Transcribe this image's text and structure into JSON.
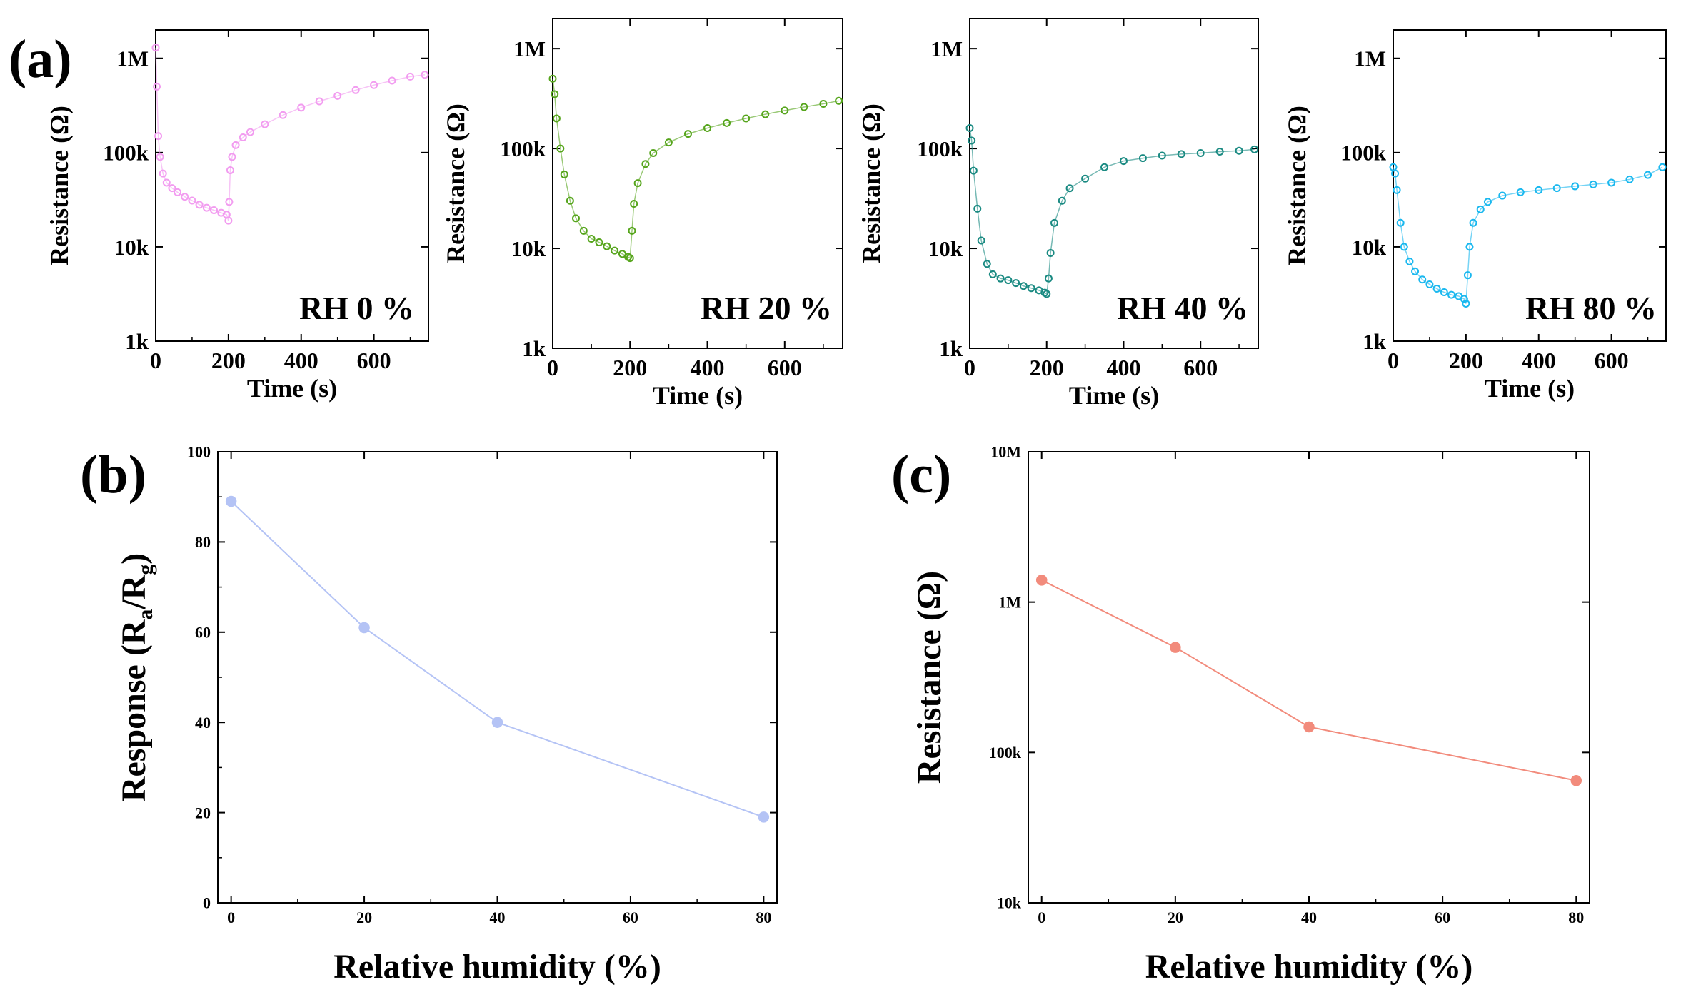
{
  "figure": {
    "panel_labels": [
      "(a)",
      "(b)",
      "(c)"
    ]
  },
  "chart_data": [
    {
      "id": "a1",
      "type": "scatter",
      "title": "",
      "annotation": "RH 0 %",
      "xlabel": "Time (s)",
      "ylabel": "Resistance (Ω)",
      "xlim": [
        0,
        750
      ],
      "ylim": [
        1000,
        2000000
      ],
      "yscale": "log",
      "xticks": [
        0,
        200,
        400,
        600
      ],
      "xtick_labels": [
        "0",
        "200",
        "400",
        "600"
      ],
      "yticks": [
        1000,
        10000,
        100000,
        1000000
      ],
      "ytick_labels": [
        "1k",
        "10k",
        "100k",
        "1M"
      ],
      "color": "#f29cf0",
      "series": [
        {
          "name": "RH 0 %",
          "x": [
            0,
            3,
            7,
            12,
            20,
            30,
            45,
            60,
            80,
            100,
            120,
            140,
            160,
            180,
            195,
            200,
            202,
            205,
            210,
            220,
            240,
            260,
            300,
            350,
            400,
            450,
            500,
            550,
            600,
            650,
            700,
            740
          ],
          "values": [
            1300000,
            500000,
            150000,
            90000,
            60000,
            48000,
            42000,
            38000,
            34000,
            31000,
            28000,
            26000,
            24500,
            23000,
            22000,
            19000,
            30000,
            65000,
            90000,
            120000,
            145000,
            165000,
            200000,
            250000,
            300000,
            350000,
            400000,
            460000,
            520000,
            580000,
            640000,
            670000
          ]
        }
      ]
    },
    {
      "id": "a2",
      "type": "scatter",
      "title": "",
      "annotation": "RH 20 %",
      "xlabel": "Time (s)",
      "ylabel": "Resistance (Ω)",
      "xlim": [
        0,
        750
      ],
      "ylim": [
        1000,
        2000000
      ],
      "yscale": "log",
      "xticks": [
        0,
        200,
        400,
        600
      ],
      "xtick_labels": [
        "0",
        "200",
        "400",
        "600"
      ],
      "yticks": [
        1000,
        10000,
        100000,
        1000000
      ],
      "ytick_labels": [
        "1k",
        "10k",
        "100k",
        "1M"
      ],
      "color": "#56a51c",
      "series": [
        {
          "name": "RH 20 %",
          "x": [
            0,
            5,
            10,
            20,
            30,
            45,
            60,
            80,
            100,
            120,
            140,
            160,
            180,
            195,
            200,
            205,
            210,
            220,
            240,
            260,
            300,
            350,
            400,
            450,
            500,
            550,
            600,
            650,
            700,
            740
          ],
          "values": [
            500000,
            350000,
            200000,
            100000,
            55000,
            30000,
            20000,
            15000,
            12500,
            11500,
            10500,
            9500,
            8800,
            8200,
            8000,
            15000,
            28000,
            45000,
            70000,
            90000,
            115000,
            140000,
            160000,
            180000,
            200000,
            220000,
            240000,
            260000,
            280000,
            300000
          ]
        }
      ]
    },
    {
      "id": "a3",
      "type": "scatter",
      "title": "",
      "annotation": "RH 40 %",
      "xlabel": "Time (s)",
      "ylabel": "Resistance (Ω)",
      "xlim": [
        0,
        750
      ],
      "ylim": [
        1000,
        2000000
      ],
      "yscale": "log",
      "xticks": [
        0,
        200,
        400,
        600
      ],
      "xtick_labels": [
        "0",
        "200",
        "400",
        "600"
      ],
      "yticks": [
        1000,
        10000,
        100000,
        1000000
      ],
      "ytick_labels": [
        "1k",
        "10k",
        "100k",
        "1M"
      ],
      "color": "#1a8a82",
      "series": [
        {
          "name": "RH 40 %",
          "x": [
            0,
            5,
            10,
            20,
            30,
            45,
            60,
            80,
            100,
            120,
            140,
            160,
            180,
            195,
            200,
            205,
            210,
            220,
            240,
            260,
            300,
            350,
            400,
            450,
            500,
            550,
            600,
            650,
            700,
            740
          ],
          "values": [
            160000,
            120000,
            60000,
            25000,
            12000,
            7000,
            5500,
            5000,
            4800,
            4500,
            4200,
            4000,
            3800,
            3600,
            3500,
            5000,
            9000,
            18000,
            30000,
            40000,
            50000,
            65000,
            75000,
            80000,
            85000,
            88000,
            90000,
            93000,
            95000,
            98000
          ]
        }
      ]
    },
    {
      "id": "a4",
      "type": "scatter",
      "title": "",
      "annotation": "RH 80 %",
      "xlabel": "Time (s)",
      "ylabel": "Resistance (Ω)",
      "xlim": [
        0,
        750
      ],
      "ylim": [
        1000,
        2000000
      ],
      "yscale": "log",
      "xticks": [
        0,
        200,
        400,
        600
      ],
      "xtick_labels": [
        "0",
        "200",
        "400",
        "600"
      ],
      "yticks": [
        1000,
        10000,
        100000,
        1000000
      ],
      "ytick_labels": [
        "1k",
        "10k",
        "100k",
        "1M"
      ],
      "color": "#1ab8ef",
      "series": [
        {
          "name": "RH 80 %",
          "x": [
            0,
            5,
            10,
            20,
            30,
            45,
            60,
            80,
            100,
            120,
            140,
            160,
            180,
            195,
            200,
            205,
            210,
            220,
            240,
            260,
            300,
            350,
            400,
            450,
            500,
            550,
            600,
            650,
            700,
            740
          ],
          "values": [
            70000,
            60000,
            40000,
            18000,
            10000,
            7000,
            5500,
            4500,
            4000,
            3600,
            3300,
            3100,
            3000,
            2800,
            2500,
            5000,
            10000,
            18000,
            25000,
            30000,
            35000,
            38000,
            40000,
            42000,
            44000,
            46000,
            48000,
            52000,
            58000,
            70000
          ]
        }
      ]
    },
    {
      "id": "b",
      "type": "line",
      "title": "",
      "xlabel": "Relative humidity (%)",
      "ylabel": "Response (Ra/Rg)",
      "ylabel_parts": [
        "Response (R",
        "a",
        "/R",
        "g",
        ")"
      ],
      "xlim": [
        -2,
        82
      ],
      "ylim": [
        0,
        100
      ],
      "yscale": "linear",
      "xticks": [
        0,
        20,
        40,
        60,
        80
      ],
      "xtick_labels": [
        "0",
        "20",
        "40",
        "60",
        "80"
      ],
      "yticks": [
        0,
        20,
        40,
        60,
        80,
        100
      ],
      "ytick_labels": [
        "0",
        "20",
        "40",
        "60",
        "80",
        "100"
      ],
      "color": "#b4c3f5",
      "series": [
        {
          "name": "Response",
          "x": [
            0,
            20,
            40,
            80
          ],
          "values": [
            89,
            61,
            40,
            19
          ]
        }
      ]
    },
    {
      "id": "c",
      "type": "line",
      "title": "",
      "xlabel": "Relative humidity (%)",
      "ylabel": "Resistance (Ω)",
      "xlim": [
        -2,
        82
      ],
      "ylim": [
        10000,
        10000000
      ],
      "yscale": "log",
      "xticks": [
        0,
        20,
        40,
        60,
        80
      ],
      "xtick_labels": [
        "0",
        "20",
        "40",
        "60",
        "80"
      ],
      "yticks": [
        10000,
        100000,
        1000000,
        10000000
      ],
      "ytick_labels": [
        "10k",
        "100k",
        "1M",
        "10M"
      ],
      "color": "#f28b7c",
      "series": [
        {
          "name": "Resistance",
          "x": [
            0,
            20,
            40,
            80
          ],
          "values": [
            1400000,
            500000,
            148000,
            65000
          ]
        }
      ]
    }
  ]
}
